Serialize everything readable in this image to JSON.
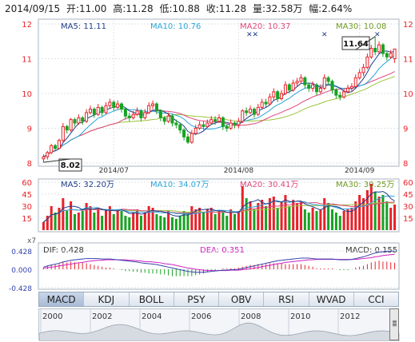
{
  "info": {
    "date": "2014/09/15",
    "open": "开:11.00",
    "high": "高:11.28",
    "low": "低:10.88",
    "close": "收:11.28",
    "volume": "量:32.58万",
    "change": "幅:2.64%"
  },
  "price_legend": {
    "ma5": "MA5: 11.11",
    "ma10": "MA10: 10.76",
    "ma20": "MA20: 10.37",
    "ma30": "MA30: 10.08"
  },
  "volume_legend": {
    "ma5": "MA5: 32.20万",
    "ma10": "MA10: 34.07万",
    "ma20": "MA20: 30.41万",
    "ma30": "MA30: 30.25万"
  },
  "macd_legend": {
    "scale": "x7",
    "dif": "DIF: 0.428",
    "dea": "DEA: 0.351",
    "macd": "MACD: 0.155"
  },
  "callouts": {
    "high": "11.64",
    "low": "8.02"
  },
  "tabs": [
    "MACD",
    "KDJ",
    "BOLL",
    "PSY",
    "OBV",
    "RSI",
    "WVAD",
    "CCI"
  ],
  "active_tab": "MACD",
  "timeline_years": [
    "2000",
    "2002",
    "2004",
    "2006",
    "2008",
    "2010",
    "2012"
  ],
  "colors": {
    "up": "#e8222a",
    "down": "#17a323",
    "ma5": "#1f3d8a",
    "ma10": "#29a5d8",
    "ma20": "#e0457a",
    "ma30": "#9cc33a",
    "dif": "#3344aa",
    "dea": "#d020c0"
  },
  "chart_data": [
    {
      "type": "candlestick",
      "ylim": [
        8,
        12
      ],
      "y_ticks": [
        "8",
        "9",
        "10",
        "11",
        "12"
      ],
      "x_ticks": [
        "2014/07",
        "2014/08",
        "2014/09"
      ],
      "x_tick_index": [
        18,
        50,
        81
      ],
      "candles": [
        [
          8.12,
          8.18,
          8.02,
          8.25
        ],
        [
          8.18,
          8.3,
          8.1,
          8.35
        ],
        [
          8.3,
          8.5,
          8.25,
          8.55
        ],
        [
          8.5,
          8.42,
          8.35,
          8.55
        ],
        [
          8.42,
          8.65,
          8.4,
          8.7
        ],
        [
          8.65,
          9.05,
          8.6,
          9.15
        ],
        [
          9.05,
          8.95,
          8.85,
          9.1
        ],
        [
          8.95,
          9.25,
          8.9,
          9.3
        ],
        [
          9.25,
          9.15,
          9.05,
          9.3
        ],
        [
          9.15,
          9.3,
          9.1,
          9.4
        ],
        [
          9.3,
          9.2,
          9.1,
          9.35
        ],
        [
          9.2,
          9.45,
          9.15,
          9.55
        ],
        [
          9.45,
          9.55,
          9.4,
          9.65
        ],
        [
          9.55,
          9.4,
          9.3,
          9.6
        ],
        [
          9.4,
          9.6,
          9.35,
          9.7
        ],
        [
          9.6,
          9.45,
          9.35,
          9.65
        ],
        [
          9.45,
          9.65,
          9.4,
          9.75
        ],
        [
          9.65,
          9.75,
          9.55,
          9.85
        ],
        [
          9.75,
          9.6,
          9.5,
          9.8
        ],
        [
          9.6,
          9.7,
          9.55,
          9.8
        ],
        [
          9.7,
          9.55,
          9.45,
          9.75
        ],
        [
          9.55,
          9.35,
          9.25,
          9.6
        ],
        [
          9.35,
          9.3,
          9.2,
          9.45
        ],
        [
          9.3,
          9.4,
          9.25,
          9.5
        ],
        [
          9.4,
          9.5,
          9.35,
          9.6
        ],
        [
          9.5,
          9.3,
          9.2,
          9.55
        ],
        [
          9.3,
          9.45,
          9.25,
          9.55
        ],
        [
          9.45,
          9.65,
          9.4,
          9.75
        ],
        [
          9.65,
          9.7,
          9.55,
          9.8
        ],
        [
          9.7,
          9.5,
          9.4,
          9.75
        ],
        [
          9.5,
          9.3,
          9.2,
          9.55
        ],
        [
          9.3,
          9.2,
          9.1,
          9.35
        ],
        [
          9.2,
          9.35,
          9.15,
          9.45
        ],
        [
          9.35,
          9.15,
          9.05,
          9.4
        ],
        [
          9.15,
          9.1,
          9.0,
          9.25
        ],
        [
          9.1,
          8.95,
          8.85,
          9.15
        ],
        [
          8.95,
          8.75,
          8.65,
          9.0
        ],
        [
          8.75,
          8.6,
          8.55,
          8.85
        ],
        [
          8.6,
          8.85,
          8.55,
          8.95
        ],
        [
          8.85,
          9.0,
          8.8,
          9.1
        ],
        [
          9.0,
          9.1,
          8.95,
          9.2
        ],
        [
          9.1,
          9.05,
          8.95,
          9.2
        ],
        [
          9.05,
          9.15,
          9.0,
          9.25
        ],
        [
          9.15,
          9.25,
          9.1,
          9.35
        ],
        [
          9.25,
          9.2,
          9.1,
          9.35
        ],
        [
          9.2,
          9.3,
          9.15,
          9.4
        ],
        [
          9.3,
          9.05,
          8.95,
          9.35
        ],
        [
          9.05,
          9.0,
          8.9,
          9.1
        ],
        [
          9.0,
          9.15,
          8.95,
          9.25
        ],
        [
          9.15,
          9.1,
          9.0,
          9.2
        ],
        [
          9.1,
          9.2,
          9.0,
          9.3
        ],
        [
          9.2,
          9.5,
          9.15,
          9.55
        ],
        [
          9.5,
          9.45,
          9.35,
          9.6
        ],
        [
          9.45,
          9.55,
          9.4,
          9.65
        ],
        [
          9.55,
          9.4,
          9.3,
          9.6
        ],
        [
          9.4,
          9.6,
          9.35,
          9.7
        ],
        [
          9.6,
          9.75,
          9.55,
          9.85
        ],
        [
          9.75,
          9.7,
          9.6,
          9.85
        ],
        [
          9.7,
          9.9,
          9.65,
          10.0
        ],
        [
          9.9,
          10.05,
          9.8,
          10.15
        ],
        [
          10.05,
          9.85,
          9.75,
          10.1
        ],
        [
          9.85,
          10.0,
          9.8,
          10.1
        ],
        [
          10.0,
          10.25,
          9.95,
          10.35
        ],
        [
          10.25,
          10.1,
          10.0,
          10.3
        ],
        [
          10.1,
          10.3,
          10.05,
          10.4
        ],
        [
          10.3,
          10.35,
          10.2,
          10.45
        ],
        [
          10.35,
          10.45,
          10.3,
          10.55
        ],
        [
          10.45,
          10.25,
          10.15,
          10.5
        ],
        [
          10.25,
          10.15,
          10.05,
          10.3
        ],
        [
          10.15,
          10.25,
          10.05,
          10.35
        ],
        [
          10.25,
          10.05,
          9.95,
          10.3
        ],
        [
          10.05,
          10.15,
          10.0,
          10.25
        ],
        [
          10.15,
          10.45,
          10.1,
          10.55
        ],
        [
          10.45,
          10.35,
          10.25,
          10.5
        ],
        [
          10.35,
          10.1,
          10.0,
          10.4
        ],
        [
          10.1,
          9.95,
          9.85,
          10.15
        ],
        [
          9.95,
          9.9,
          9.8,
          10.05
        ],
        [
          9.9,
          10.05,
          9.85,
          10.15
        ],
        [
          10.05,
          10.15,
          10.0,
          10.25
        ],
        [
          10.15,
          10.2,
          10.05,
          10.3
        ],
        [
          10.2,
          10.45,
          10.15,
          10.55
        ],
        [
          10.45,
          10.6,
          10.4,
          10.7
        ],
        [
          10.6,
          10.75,
          10.5,
          10.85
        ],
        [
          10.75,
          11.05,
          10.7,
          11.15
        ],
        [
          11.05,
          11.3,
          11.0,
          11.4
        ],
        [
          11.3,
          11.2,
          11.1,
          11.64
        ],
        [
          11.2,
          11.4,
          11.15,
          11.5
        ],
        [
          11.4,
          11.15,
          11.05,
          11.45
        ],
        [
          11.15,
          11.05,
          10.95,
          11.2
        ],
        [
          11.05,
          11.15,
          11.0,
          11.25
        ],
        [
          11.0,
          11.28,
          10.88,
          11.28
        ]
      ]
    },
    {
      "type": "bar",
      "title": "volume",
      "ylim": [
        0,
        60
      ],
      "y_ticks": [
        "60",
        "45",
        "30",
        "15"
      ],
      "values": [
        10,
        18,
        30,
        22,
        28,
        40,
        24,
        36,
        20,
        22,
        24,
        34,
        30,
        22,
        28,
        18,
        26,
        30,
        20,
        26,
        24,
        18,
        16,
        22,
        26,
        18,
        22,
        30,
        28,
        20,
        18,
        16,
        24,
        16,
        14,
        18,
        24,
        22,
        30,
        26,
        28,
        22,
        26,
        28,
        20,
        24,
        22,
        18,
        26,
        20,
        24,
        55,
        40,
        36,
        26,
        34,
        38,
        30,
        40,
        42,
        28,
        36,
        44,
        30,
        38,
        34,
        36,
        26,
        22,
        28,
        24,
        26,
        40,
        34,
        26,
        22,
        18,
        24,
        26,
        28,
        36,
        44,
        40,
        50,
        58,
        48,
        42,
        44,
        36,
        28,
        32
      ]
    },
    {
      "type": "line",
      "title": "MACD",
      "ylim": [
        -0.428,
        0.428
      ],
      "y_ticks": [
        "0.428",
        "0.000",
        "-0.428"
      ],
      "dif": [
        0.05,
        0.08,
        0.1,
        0.12,
        0.14,
        0.17,
        0.19,
        0.21,
        0.22,
        0.23,
        0.24,
        0.25,
        0.25,
        0.25,
        0.25,
        0.24,
        0.24,
        0.24,
        0.23,
        0.22,
        0.21,
        0.2,
        0.19,
        0.18,
        0.17,
        0.15,
        0.14,
        0.13,
        0.12,
        0.11,
        0.09,
        0.07,
        0.05,
        0.03,
        0.01,
        -0.01,
        -0.03,
        -0.05,
        -0.06,
        -0.07,
        -0.07,
        -0.07,
        -0.06,
        -0.05,
        -0.04,
        -0.03,
        -0.02,
        -0.02,
        -0.01,
        -0.01,
        0.0,
        0.02,
        0.04,
        0.06,
        0.08,
        0.1,
        0.12,
        0.14,
        0.16,
        0.18,
        0.2,
        0.21,
        0.22,
        0.23,
        0.24,
        0.25,
        0.26,
        0.26,
        0.26,
        0.25,
        0.24,
        0.24,
        0.24,
        0.24,
        0.24,
        0.23,
        0.22,
        0.22,
        0.22,
        0.23,
        0.25,
        0.27,
        0.29,
        0.32,
        0.35,
        0.38,
        0.4,
        0.41,
        0.42,
        0.42,
        0.428
      ],
      "dea": [
        0.03,
        0.04,
        0.05,
        0.06,
        0.08,
        0.09,
        0.11,
        0.12,
        0.14,
        0.15,
        0.16,
        0.18,
        0.19,
        0.2,
        0.21,
        0.21,
        0.22,
        0.22,
        0.22,
        0.22,
        0.22,
        0.22,
        0.21,
        0.21,
        0.2,
        0.19,
        0.18,
        0.18,
        0.17,
        0.16,
        0.15,
        0.13,
        0.12,
        0.11,
        0.09,
        0.07,
        0.05,
        0.03,
        0.02,
        0.0,
        -0.01,
        -0.02,
        -0.03,
        -0.03,
        -0.03,
        -0.03,
        -0.03,
        -0.03,
        -0.02,
        -0.02,
        -0.02,
        -0.01,
        0.0,
        0.01,
        0.03,
        0.04,
        0.06,
        0.08,
        0.09,
        0.11,
        0.13,
        0.14,
        0.16,
        0.17,
        0.18,
        0.19,
        0.2,
        0.21,
        0.22,
        0.22,
        0.23,
        0.23,
        0.23,
        0.23,
        0.23,
        0.23,
        0.23,
        0.23,
        0.23,
        0.23,
        0.23,
        0.24,
        0.25,
        0.26,
        0.27,
        0.29,
        0.3,
        0.32,
        0.33,
        0.34,
        0.351
      ]
    }
  ]
}
